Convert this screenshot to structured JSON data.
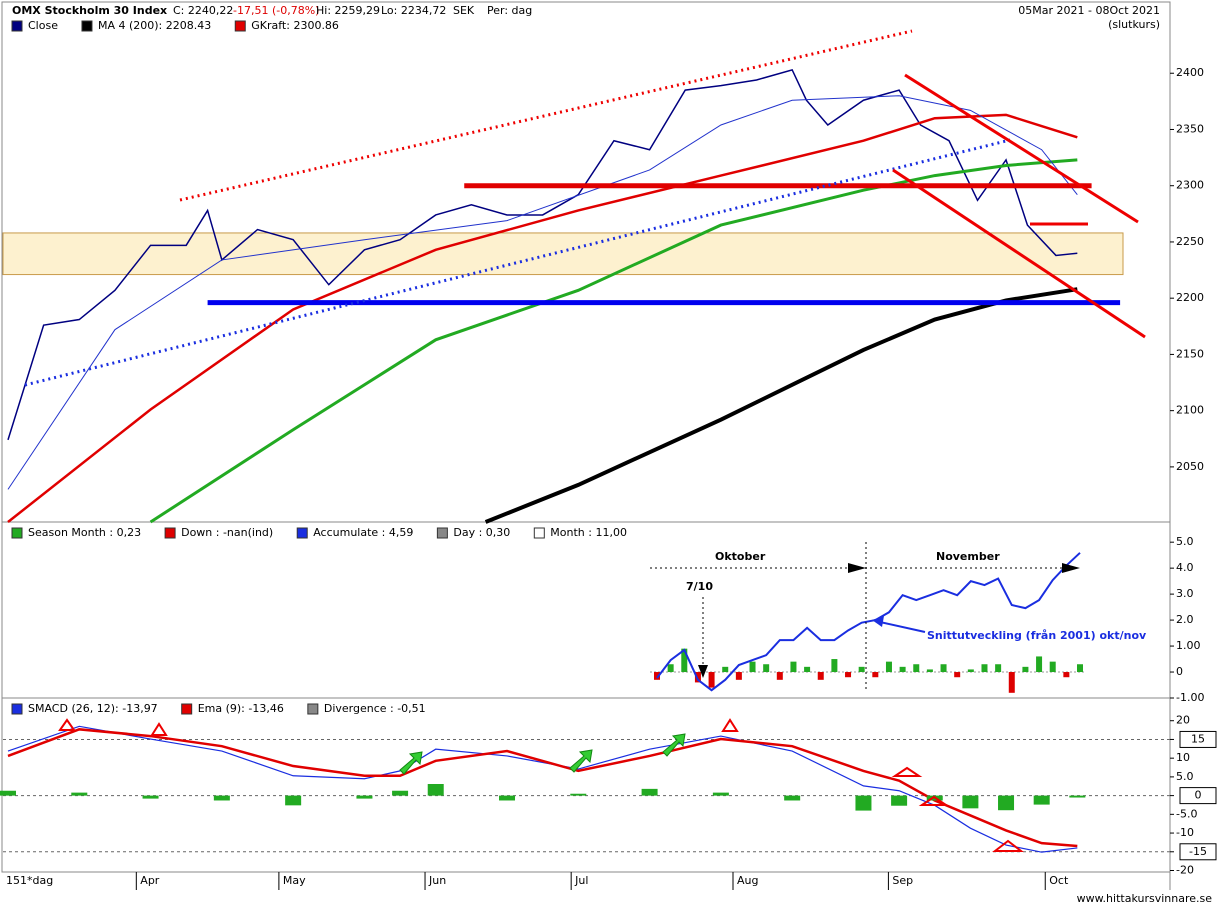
{
  "chart_data": [
    {
      "type": "line",
      "title": "OMX Stockholm 30 Index",
      "quote": [
        "C: 2240,22",
        "-17,51 (-0,78%)",
        "Hi: 2259,29",
        "Lo: 2234,72",
        "SEK",
        "Per: dag"
      ],
      "date_range": "05Mar 2021 - 08Oct 2021",
      "note": "(slutkurs)",
      "xlim": [
        -0.7,
        163
      ],
      "ylim": [
        2001,
        2434
      ],
      "yticks": [
        2050,
        2100,
        2150,
        2200,
        2250,
        2300,
        2350,
        2400
      ],
      "band": {
        "values": [
          2221,
          2258
        ],
        "color": "#fdf1cf"
      },
      "levels": [
        {
          "value": 2300,
          "from": 64,
          "to": 152,
          "color": "#e00000"
        },
        {
          "value": 2196,
          "from": 28,
          "to": 156,
          "color": "#0000ee"
        }
      ],
      "series": [
        {
          "name": "Close",
          "color": "#000080",
          "x": [
            0,
            5,
            10,
            15,
            20,
            25,
            28,
            30,
            35,
            40,
            45,
            50,
            55,
            60,
            65,
            70,
            75,
            80,
            85,
            90,
            95,
            100,
            105,
            110,
            112,
            115,
            120,
            125,
            128,
            132,
            136,
            140,
            143,
            147,
            150
          ],
          "values": [
            2074,
            2176,
            2181,
            2207,
            2247,
            2247,
            2278,
            2234,
            2261,
            2252,
            2212,
            2243,
            2252,
            2274,
            2283,
            2274,
            2274,
            2292,
            2340,
            2332,
            2385,
            2389,
            2394,
            2403,
            2376,
            2354,
            2376,
            2385,
            2354,
            2340,
            2287,
            2323,
            2265,
            2238,
            2240
          ]
        },
        {
          "name": "MA 4 (200): 2208.43",
          "color": "#000000",
          "x": [
            67,
            80,
            100,
            120,
            130,
            140,
            150
          ],
          "values": [
            2001,
            2034,
            2092,
            2154,
            2181,
            2198,
            2208
          ]
        },
        {
          "name": "GKraft: 2300.86",
          "color": "#e00000",
          "x": [
            0,
            20,
            40,
            60,
            80,
            100,
            120,
            130,
            140,
            150
          ],
          "values": [
            2001,
            2101,
            2190,
            2243,
            2278,
            2309,
            2340,
            2360,
            2363,
            2343
          ]
        },
        {
          "color": "#22aa22",
          "x": [
            20,
            40,
            60,
            80,
            100,
            120,
            130,
            140,
            150
          ],
          "values": [
            2001,
            2083,
            2163,
            2207,
            2265,
            2296,
            2309,
            2318,
            2323
          ]
        },
        {
          "color": "#2233cc",
          "x": [
            0,
            15,
            30,
            50,
            70,
            90,
            100,
            110,
            125,
            135,
            145,
            150
          ],
          "values": [
            2030,
            2172,
            2234,
            2252,
            2269,
            2314,
            2354,
            2376,
            2380,
            2367,
            2332,
            2292
          ]
        }
      ]
    },
    {
      "type": "combo",
      "ylim": [
        -1,
        5.7
      ],
      "yticks": [
        {
          "value": 5,
          "label": "5.0"
        },
        {
          "value": 4,
          "label": "4.0"
        },
        {
          "value": 3,
          "label": "3.0"
        },
        {
          "value": 2,
          "label": "2.0"
        },
        {
          "value": 1,
          "label": "1.00"
        },
        0,
        {
          "value": -1,
          "label": "-1.00"
        }
      ],
      "annotations": [
        "Oktober",
        "November",
        "7/10",
        "Snittutveckling (från 2001) okt/nov"
      ],
      "series": [
        {
          "name": "Season Month : 0,23",
          "color": "#22aa22",
          "values": [
            null,
            0.3,
            0.9,
            null,
            null,
            0.2,
            null,
            0.4,
            0.3,
            null,
            0.4,
            0.2,
            null,
            0.5,
            null,
            0.2,
            null,
            0.4,
            0.2,
            0.3,
            0.1,
            0.3,
            null,
            0.1,
            0.3,
            0.3,
            null,
            0.2,
            0.6,
            0.4,
            null,
            0.3
          ]
        },
        {
          "name": "Down : -nan(ind)",
          "color": "#dd0000",
          "values": [
            -0.3,
            null,
            null,
            -0.4,
            -0.6,
            null,
            -0.3,
            null,
            null,
            -0.3,
            null,
            null,
            -0.3,
            null,
            -0.2,
            null,
            -0.2,
            null,
            null,
            null,
            null,
            null,
            -0.2,
            null,
            null,
            null,
            -0.8,
            null,
            null,
            null,
            -0.2,
            null
          ]
        },
        {
          "name": "Accumulate : 4,59",
          "color": "#1a2ee0",
          "values": [
            -0.23,
            0.46,
            0.85,
            -0.3,
            -0.7,
            -0.3,
            0.27,
            0.46,
            0.65,
            1.23,
            1.23,
            1.7,
            1.23,
            1.23,
            1.6,
            1.9,
            2.0,
            2.3,
            2.96,
            2.77,
            2.96,
            3.15,
            2.96,
            3.5,
            3.35,
            3.6,
            2.58,
            2.46,
            2.77,
            3.54,
            4.1,
            4.59
          ]
        },
        {
          "name": "Day : 0,30",
          "color": "#888888"
        },
        {
          "name": "Month : 11,00",
          "color": "#ffffff"
        }
      ]
    },
    {
      "type": "macd",
      "xlim": [
        -0.7,
        163
      ],
      "ylim": [
        -20.4,
        25.8
      ],
      "yticks": [
        20,
        15,
        10,
        {
          "value": 5,
          "label": "5.0"
        },
        0,
        {
          "value": -5,
          "label": "-5.0"
        },
        -10,
        -15,
        -20
      ],
      "boxed_ticks": [
        15,
        0,
        -15
      ],
      "xticks": [
        {
          "value": 18,
          "label": "Apr"
        },
        {
          "value": 38,
          "label": "May"
        },
        {
          "value": 58.5,
          "label": "Jun"
        },
        {
          "value": 79,
          "label": "Jul"
        },
        {
          "value": 101.7,
          "label": "Aug"
        },
        {
          "value": 123.5,
          "label": "Sep"
        },
        {
          "value": 145.5,
          "label": "Oct"
        }
      ],
      "period": "151*dag",
      "source": "www.hittakursvinnare.se",
      "x": [
        0,
        10,
        20,
        30,
        40,
        50,
        55,
        60,
        70,
        80,
        90,
        100,
        110,
        120,
        125,
        130,
        135,
        140,
        145,
        150
      ],
      "series": [
        {
          "name": "SMACD (26, 12): -13,97",
          "color": "#1a2ee0",
          "values": [
            11.9,
            18.5,
            15.1,
            11.9,
            5.3,
            4.5,
            6.6,
            12.4,
            10.6,
            7.1,
            12.4,
            15.9,
            11.9,
            2.6,
            1.3,
            -2.6,
            -8.7,
            -13.2,
            -15.1,
            -13.97
          ]
        },
        {
          "name": "Ema (9): -13,46",
          "color": "#e00000",
          "values": [
            10.6,
            17.7,
            15.9,
            13.2,
            7.9,
            5.3,
            5.3,
            9.3,
            11.9,
            6.6,
            10.6,
            15.1,
            13.2,
            6.6,
            4.0,
            -1.3,
            -5.3,
            -9.3,
            -12.7,
            -13.46
          ]
        },
        {
          "name": "Divergence : -0,51",
          "color": "#888888",
          "bar_color": "#22aa22",
          "values": [
            1.3,
            0.8,
            -0.8,
            -1.3,
            -2.6,
            -0.8,
            1.3,
            3.1,
            -1.3,
            0.5,
            1.8,
            0.8,
            -1.3,
            -4.0,
            -2.7,
            -1.3,
            -3.4,
            -3.9,
            -2.4,
            -0.51
          ]
        }
      ]
    }
  ]
}
